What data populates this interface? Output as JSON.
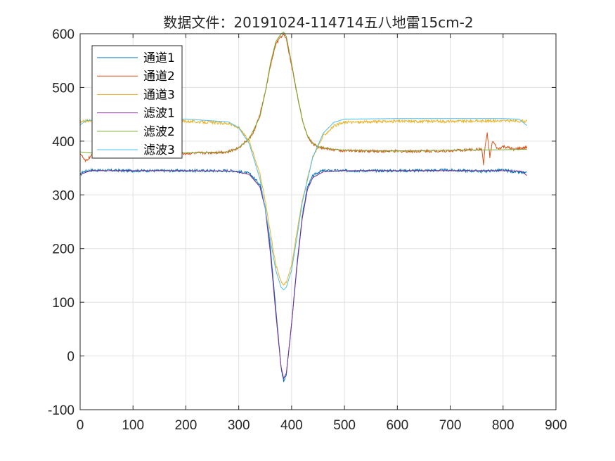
{
  "chart_data": {
    "type": "line",
    "title": "数据文件：20191024-114714五八地雷15cm-2",
    "xlabel": "",
    "ylabel": "",
    "xlim": [
      0,
      900
    ],
    "ylim": [
      -100,
      600
    ],
    "xticks": [
      0,
      100,
      200,
      300,
      400,
      500,
      600,
      700,
      800,
      900
    ],
    "yticks": [
      -100,
      0,
      100,
      200,
      300,
      400,
      500,
      600
    ],
    "xtick_labels": [
      "0",
      "100",
      "200",
      "300",
      "400",
      "500",
      "600",
      "700",
      "800",
      "900"
    ],
    "ytick_labels": [
      "-100",
      "0",
      "100",
      "200",
      "300",
      "400",
      "500",
      "600"
    ],
    "grid": true,
    "legend_position": "top-left",
    "series": [
      {
        "name": "通道1",
        "color": "#0072BD",
        "noisy": true,
        "x": [
          0,
          5,
          20,
          100,
          200,
          290,
          320,
          340,
          350,
          360,
          370,
          380,
          385,
          390,
          400,
          410,
          420,
          430,
          440,
          450,
          460,
          480,
          520,
          600,
          700,
          760,
          800,
          845
        ],
        "y": [
          336,
          343,
          346,
          345,
          345,
          345,
          340,
          320,
          280,
          200,
          90,
          -20,
          -48,
          -35,
          60,
          170,
          260,
          315,
          335,
          342,
          345,
          345,
          345,
          345,
          346,
          344,
          346,
          340
        ]
      },
      {
        "name": "通道2",
        "color": "#D95319",
        "noisy": true,
        "x": [
          0,
          10,
          20,
          30,
          100,
          200,
          280,
          300,
          320,
          330,
          340,
          350,
          360,
          370,
          380,
          385,
          390,
          400,
          410,
          420,
          430,
          440,
          450,
          470,
          500,
          600,
          700,
          760,
          763,
          766,
          770,
          775,
          780,
          790,
          800,
          820,
          845
        ],
        "y": [
          378,
          362,
          372,
          376,
          378,
          377,
          380,
          388,
          405,
          420,
          450,
          490,
          540,
          580,
          595,
          598,
          590,
          540,
          490,
          440,
          410,
          395,
          390,
          385,
          382,
          381,
          382,
          385,
          355,
          390,
          415,
          370,
          400,
          385,
          390,
          385,
          388
        ]
      },
      {
        "name": "通道3",
        "color": "#EDB120",
        "noisy": true,
        "x": [
          0,
          10,
          100,
          200,
          280,
          300,
          320,
          340,
          350,
          360,
          370,
          380,
          385,
          390,
          400,
          410,
          420,
          440,
          460,
          480,
          500,
          600,
          700,
          800,
          845
        ],
        "y": [
          434,
          438,
          439,
          437,
          433,
          425,
          400,
          340,
          290,
          230,
          170,
          140,
          133,
          137,
          170,
          230,
          290,
          370,
          410,
          428,
          435,
          437,
          437,
          438,
          437
        ]
      },
      {
        "name": "滤波1",
        "color": "#7E2F8E",
        "noisy": false,
        "x": [
          0,
          20,
          100,
          200,
          290,
          320,
          340,
          350,
          360,
          370,
          380,
          385,
          390,
          400,
          410,
          420,
          430,
          440,
          460,
          500,
          600,
          700,
          800,
          835,
          845
        ],
        "y": [
          338,
          345,
          345,
          345,
          344,
          338,
          315,
          275,
          190,
          80,
          -20,
          -42,
          -32,
          60,
          165,
          255,
          310,
          332,
          343,
          345,
          345,
          345,
          345,
          344,
          336
        ]
      },
      {
        "name": "滤波2",
        "color": "#77AC30",
        "noisy": false,
        "x": [
          0,
          20,
          100,
          200,
          280,
          300,
          320,
          340,
          350,
          360,
          370,
          380,
          385,
          390,
          400,
          410,
          420,
          430,
          440,
          450,
          470,
          500,
          600,
          700,
          800,
          845
        ],
        "y": [
          380,
          378,
          379,
          378,
          380,
          388,
          405,
          445,
          490,
          545,
          585,
          600,
          603,
          595,
          545,
          490,
          440,
          410,
          396,
          390,
          386,
          383,
          382,
          383,
          384,
          385
        ]
      },
      {
        "name": "滤波3",
        "color": "#4DBEEE",
        "noisy": false,
        "x": [
          0,
          10,
          50,
          100,
          200,
          280,
          300,
          320,
          340,
          350,
          360,
          370,
          380,
          385,
          390,
          400,
          410,
          420,
          440,
          460,
          480,
          500,
          600,
          700,
          800,
          830,
          845
        ],
        "y": [
          430,
          438,
          441,
          441,
          441,
          436,
          425,
          395,
          330,
          275,
          215,
          160,
          128,
          123,
          128,
          160,
          220,
          285,
          370,
          415,
          435,
          441,
          442,
          442,
          442,
          441,
          429
        ]
      }
    ]
  }
}
